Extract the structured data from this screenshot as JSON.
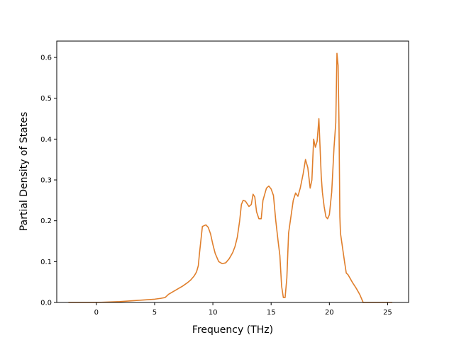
{
  "chart_data": {
    "type": "line",
    "title": "",
    "xlabel": "Frequency (THz)",
    "ylabel": "Partial Density of States",
    "xlim": [
      -3.4,
      26.8
    ],
    "ylim": [
      0,
      0.64
    ],
    "xticks": [
      0,
      5,
      10,
      15,
      20,
      25
    ],
    "xtick_labels": [
      "0",
      "5",
      "10",
      "15",
      "20",
      "25"
    ],
    "yticks": [
      0.0,
      0.1,
      0.2,
      0.3,
      0.4,
      0.5,
      0.6
    ],
    "ytick_labels": [
      "0.0",
      "0.1",
      "0.2",
      "0.3",
      "0.4",
      "0.5",
      "0.6"
    ],
    "grid": false,
    "legend": "none",
    "series": [
      {
        "color": "#e07f2c",
        "x": [
          -2.4,
          0,
          2,
          3,
          4,
          5,
          5.5,
          5.9,
          6.2,
          6.8,
          7.4,
          7.8,
          8.1,
          8.4,
          8.6,
          8.75,
          8.85,
          9.1,
          9.4,
          9.6,
          9.8,
          10.0,
          10.2,
          10.5,
          10.8,
          11.1,
          11.4,
          11.7,
          11.9,
          12.1,
          12.3,
          12.45,
          12.6,
          12.8,
          13.1,
          13.3,
          13.45,
          13.6,
          13.75,
          13.95,
          14.15,
          14.3,
          14.45,
          14.6,
          14.8,
          15.0,
          15.2,
          15.4,
          15.6,
          15.75,
          15.9,
          16.05,
          16.2,
          16.35,
          16.5,
          16.7,
          16.9,
          17.1,
          17.3,
          17.5,
          17.75,
          17.95,
          18.15,
          18.35,
          18.5,
          18.65,
          18.8,
          18.95,
          19.1,
          19.2,
          19.3,
          19.4,
          19.55,
          19.7,
          19.85,
          20.0,
          20.2,
          20.4,
          20.55,
          20.65,
          20.75,
          20.82,
          20.87,
          20.9,
          20.95,
          21.1,
          21.3,
          21.45,
          21.6,
          21.8,
          22.0,
          22.3,
          22.6,
          22.9,
          23.1,
          23.25,
          23.5,
          24.0,
          24.5,
          25.0,
          25.4
        ],
        "y": [
          0.0,
          0.0,
          0.002,
          0.004,
          0.006,
          0.008,
          0.01,
          0.012,
          0.02,
          0.03,
          0.04,
          0.048,
          0.055,
          0.065,
          0.075,
          0.09,
          0.12,
          0.186,
          0.19,
          0.184,
          0.168,
          0.142,
          0.12,
          0.1,
          0.095,
          0.097,
          0.107,
          0.122,
          0.137,
          0.16,
          0.2,
          0.24,
          0.25,
          0.248,
          0.235,
          0.24,
          0.265,
          0.258,
          0.222,
          0.205,
          0.205,
          0.25,
          0.265,
          0.28,
          0.285,
          0.278,
          0.262,
          0.2,
          0.15,
          0.115,
          0.04,
          0.012,
          0.012,
          0.06,
          0.17,
          0.21,
          0.25,
          0.268,
          0.26,
          0.28,
          0.315,
          0.35,
          0.33,
          0.28,
          0.3,
          0.4,
          0.38,
          0.395,
          0.45,
          0.38,
          0.31,
          0.27,
          0.235,
          0.21,
          0.205,
          0.215,
          0.27,
          0.38,
          0.44,
          0.61,
          0.58,
          0.45,
          0.3,
          0.21,
          0.17,
          0.14,
          0.1,
          0.072,
          0.068,
          0.058,
          0.048,
          0.035,
          0.02,
          0.0,
          0.0,
          0.0,
          0.0,
          0.0,
          0.0,
          0.0,
          0.0
        ]
      }
    ]
  }
}
